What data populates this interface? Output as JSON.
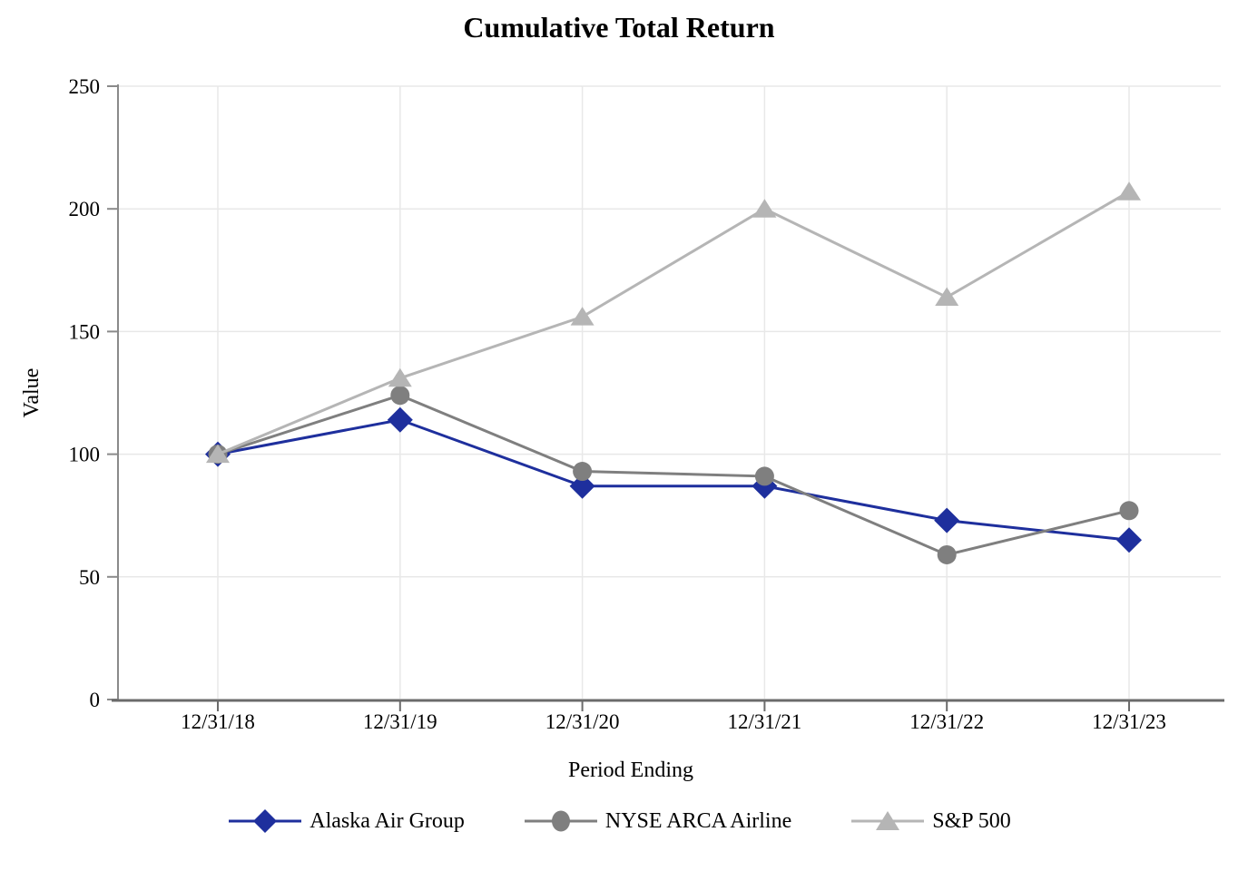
{
  "title": "Cumulative Total Return",
  "chart_data": {
    "type": "line",
    "title": "Cumulative Total Return",
    "xlabel": "Period Ending",
    "ylabel": "Value",
    "categories": [
      "12/31/18",
      "12/31/19",
      "12/31/20",
      "12/31/21",
      "12/31/22",
      "12/31/23"
    ],
    "ylim": [
      0,
      250
    ],
    "ytick_interval": 50,
    "yticks": [
      0,
      50,
      100,
      150,
      200,
      250
    ],
    "grid": true,
    "legend_position": "bottom",
    "series": [
      {
        "name": "Alaska Air Group",
        "marker": "diamond",
        "color": "#1e2f9d",
        "values": [
          100,
          114,
          87,
          87,
          73,
          65
        ]
      },
      {
        "name": "NYSE ARCA Airline",
        "marker": "circle",
        "color": "#7f7f7f",
        "values": [
          100,
          124,
          93,
          91,
          59,
          77
        ]
      },
      {
        "name": "S&P 500",
        "marker": "triangle",
        "color": "#b5b5b5",
        "values": [
          100,
          131,
          156,
          200,
          164,
          207
        ]
      }
    ]
  },
  "colors": {
    "grid": "#e8e8e8",
    "x_axis": "#6b6b6b",
    "y_axis": "#8a8a8a",
    "text": "#000000",
    "background": "#ffffff"
  }
}
